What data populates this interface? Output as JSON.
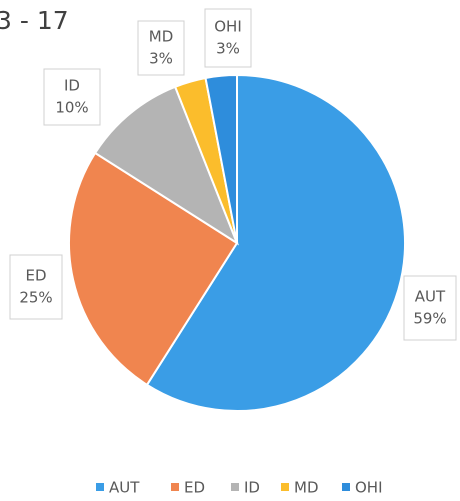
{
  "chart_data": {
    "type": "pie",
    "title": "3 - 17",
    "categories": [
      "AUT",
      "ED",
      "ID",
      "MD",
      "OHI"
    ],
    "values": [
      59,
      25,
      10,
      3,
      3
    ],
    "value_labels": [
      "59%",
      "25%",
      "10%",
      "3%",
      "3%"
    ],
    "colors": [
      "#3a9de6",
      "#f0854f",
      "#b4b4b4",
      "#fbbd2c",
      "#2e8ddc"
    ],
    "legend": "bottom"
  }
}
